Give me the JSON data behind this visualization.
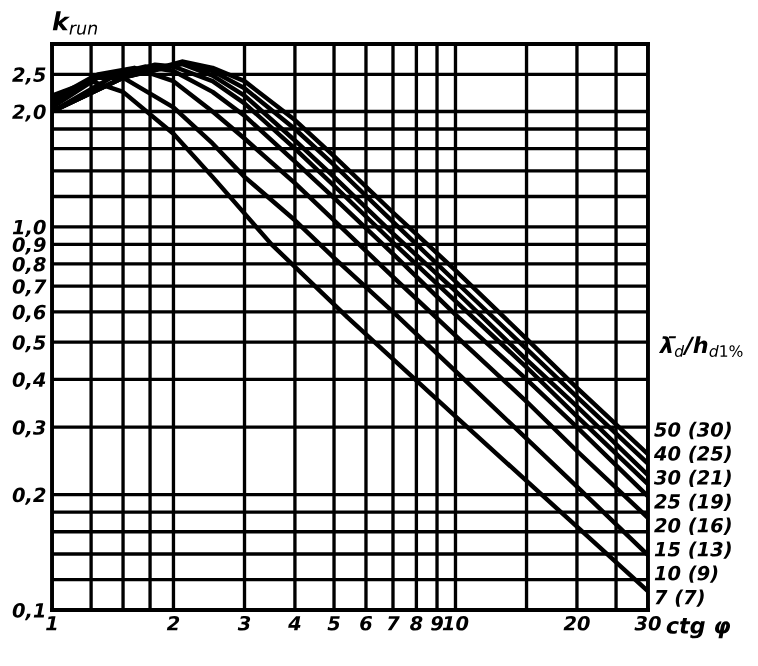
{
  "chart_data": {
    "type": "line",
    "ylabel": "k$_{run}$",
    "xlabel": "ctg φ",
    "legend_title": "λ̄$_{d}$/h$_{d1%}$",
    "log": "xy",
    "grid": true,
    "legend": false,
    "marker": "none",
    "line_style": "solid",
    "xlim": [
      1,
      30
    ],
    "ylim": [
      0.1,
      3.0
    ],
    "xticks": [
      1,
      {
        "value": 1.25,
        "label": null
      },
      {
        "value": 1.5,
        "label": null
      },
      {
        "value": 1.75,
        "label": null
      },
      2,
      3,
      4,
      5,
      6,
      7,
      8,
      9,
      10,
      {
        "value": 15,
        "label": null
      },
      20,
      {
        "value": 25,
        "label": null
      },
      30
    ],
    "yticks": [
      {
        "value": 0.1,
        "label": "0,1"
      },
      {
        "value": 0.12,
        "label": null
      },
      {
        "value": 0.14,
        "label": null
      },
      {
        "value": 0.16,
        "label": null
      },
      {
        "value": 0.18,
        "label": null
      },
      {
        "value": 0.2,
        "label": "0,2"
      },
      {
        "value": 0.3,
        "label": "0,3"
      },
      {
        "value": 0.4,
        "label": "0,4"
      },
      {
        "value": 0.5,
        "label": "0,5"
      },
      {
        "value": 0.6,
        "label": "0,6"
      },
      {
        "value": 0.7,
        "label": "0,7"
      },
      {
        "value": 0.8,
        "label": "0,8"
      },
      {
        "value": 0.9,
        "label": "0,9"
      },
      {
        "value": 1.0,
        "label": "1,0"
      },
      {
        "value": 1.2,
        "label": null
      },
      {
        "value": 1.4,
        "label": null
      },
      {
        "value": 1.6,
        "label": null
      },
      {
        "value": 1.8,
        "label": null
      },
      {
        "value": 2.0,
        "label": "2,0"
      },
      {
        "value": 2.5,
        "label": "2,5"
      }
    ],
    "series": [
      {
        "name": "7 (7)",
        "color": "#000000",
        "x": [
          1,
          1.25,
          1.5,
          2,
          2.5,
          3.5,
          5.4,
          10,
          20,
          30
        ],
        "values": [
          2.2,
          2.4,
          2.25,
          1.75,
          1.35,
          0.9,
          0.58,
          0.32,
          0.165,
          0.112
        ]
      },
      {
        "name": "10 (9)",
        "color": "#000000",
        "x": [
          1,
          1.25,
          1.5,
          2,
          2.5,
          3,
          4,
          5,
          7,
          10,
          15,
          20,
          30
        ],
        "values": [
          2.15,
          2.45,
          2.45,
          2.05,
          1.65,
          1.35,
          1.04,
          0.83,
          0.6,
          0.42,
          0.28,
          0.21,
          0.139
        ]
      },
      {
        "name": "15 (13)",
        "color": "#000000",
        "x": [
          1,
          1.3,
          1.6,
          2,
          2.5,
          3,
          4,
          5,
          7,
          10,
          15,
          20,
          30
        ],
        "values": [
          2.1,
          2.5,
          2.6,
          2.4,
          2.0,
          1.7,
          1.3,
          1.04,
          0.74,
          0.52,
          0.35,
          0.26,
          0.174
        ]
      },
      {
        "name": "20 (16)",
        "color": "#000000",
        "x": [
          1,
          1.3,
          1.7,
          2,
          2.5,
          3,
          4,
          5,
          7,
          10,
          15,
          20,
          30
        ],
        "values": [
          2.05,
          2.45,
          2.62,
          2.55,
          2.25,
          1.95,
          1.48,
          1.19,
          0.85,
          0.59,
          0.4,
          0.3,
          0.198
        ]
      },
      {
        "name": "25 (19)",
        "color": "#000000",
        "x": [
          1,
          1.4,
          1.8,
          2,
          2.5,
          3,
          4,
          5,
          7,
          10,
          15,
          20,
          30
        ],
        "values": [
          2.0,
          2.45,
          2.65,
          2.62,
          2.4,
          2.1,
          1.6,
          1.28,
          0.91,
          0.64,
          0.43,
          0.32,
          0.213
        ]
      },
      {
        "name": "30 (21)",
        "color": "#000000",
        "x": [
          1,
          1.5,
          2.1,
          2.5,
          3,
          4,
          5,
          7,
          10,
          15,
          20,
          30
        ],
        "values": [
          2.0,
          2.45,
          2.66,
          2.48,
          2.2,
          1.68,
          1.35,
          0.96,
          0.68,
          0.45,
          0.34,
          0.225
        ]
      },
      {
        "name": "40 (25)",
        "color": "#000000",
        "x": [
          1,
          1.5,
          2.1,
          2.5,
          3,
          4,
          5,
          7,
          10,
          15,
          20,
          30
        ],
        "values": [
          2.0,
          2.45,
          2.68,
          2.55,
          2.3,
          1.8,
          1.45,
          1.03,
          0.72,
          0.48,
          0.36,
          0.241
        ]
      },
      {
        "name": "50 (30)",
        "color": "#000000",
        "x": [
          1,
          1.5,
          2.1,
          2.5,
          3,
          4,
          5,
          7,
          10,
          15,
          20,
          30
        ],
        "values": [
          2.0,
          2.45,
          2.7,
          2.6,
          2.4,
          1.9,
          1.53,
          1.09,
          0.77,
          0.51,
          0.38,
          0.255
        ]
      }
    ]
  }
}
